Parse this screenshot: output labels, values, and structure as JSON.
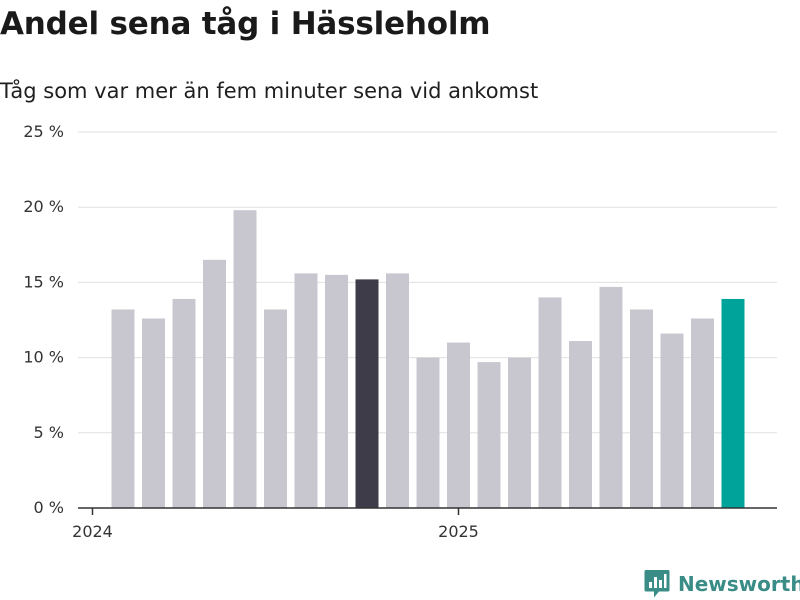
{
  "title": "Andel sena tåg i Hässleholm",
  "subtitle": "Tåg som var mer än fem minuter sena vid ankomst",
  "brand": {
    "name": "Newsworthy",
    "icon": "newsworthy-logo-icon",
    "color": "#3a8c87"
  },
  "colors": {
    "default": "#c8c7cf",
    "highlight": "#3d3c48",
    "current": "#00a39a",
    "grid": "#e0e0e0",
    "axis": "#333333"
  },
  "chart_data": {
    "type": "bar",
    "title": "Andel sena tåg i Hässleholm",
    "subtitle": "Tåg som var mer än fem minuter sena vid ankomst",
    "xlabel": "",
    "ylabel": "",
    "x_tick_labels": [
      "2024",
      "2025"
    ],
    "y_ticks": [
      0,
      5,
      10,
      15,
      20,
      25
    ],
    "y_tick_labels": [
      "0 %",
      "5 %",
      "10 %",
      "15 %",
      "20 %",
      "25 %"
    ],
    "ylim": [
      0,
      25
    ],
    "grid": true,
    "legend": "none",
    "categories": [
      "2024-01",
      "2024-02",
      "2024-03",
      "2024-04",
      "2024-05",
      "2024-06",
      "2024-07",
      "2024-08",
      "2024-09",
      "2024-10",
      "2024-11",
      "2024-12",
      "2025-01",
      "2025-02",
      "2025-03",
      "2025-04",
      "2025-05",
      "2025-06",
      "2025-07",
      "2025-08",
      "2025-09"
    ],
    "values": [
      13.2,
      12.6,
      13.9,
      16.5,
      19.8,
      13.2,
      15.6,
      15.5,
      15.2,
      15.6,
      10.0,
      11.0,
      9.7,
      10.0,
      14.0,
      11.1,
      14.7,
      13.2,
      11.6,
      12.6,
      13.9
    ],
    "highlight": {
      "2024-09": "highlight",
      "2025-09": "current"
    }
  }
}
